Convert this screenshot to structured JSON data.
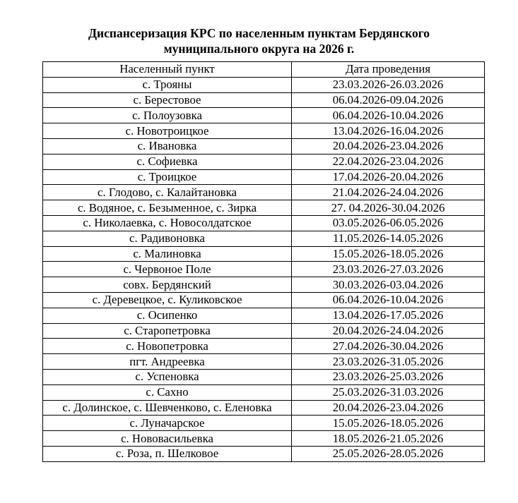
{
  "title": {
    "line1": "Диспансеризация КРС по населенным пунктам Бердянского",
    "line2": "муниципального округа на 2026 г."
  },
  "table": {
    "headers": [
      "Населенный пункт",
      "Дата проведения"
    ],
    "rows": [
      [
        "с. Трояны",
        "23.03.2026-26.03.2026"
      ],
      [
        "с. Берестовое",
        "06.04.2026-09.04.2026"
      ],
      [
        "с. Полоузовка",
        "06.04.2026-10.04.2026"
      ],
      [
        "с. Новотроицкое",
        "13.04.2026-16.04.2026"
      ],
      [
        "с. Ивановка",
        "20.04.2026-23.04.2026"
      ],
      [
        "с. Софиевка",
        "22.04.2026-23.04.2026"
      ],
      [
        "с. Троицкое",
        "17.04.2026-20.04.2026"
      ],
      [
        "с. Глодово, с. Калайтановка",
        "21.04.2026-24.04.2026"
      ],
      [
        "с. Водяное, с. Безыменное, с. Зирка",
        "27. 04.2026-30.04.2026"
      ],
      [
        "с. Николаевка, с. Новосолдатское",
        "03.05.2026-06.05.2026"
      ],
      [
        "с. Радивоновка",
        "11.05.2026-14.05.2026"
      ],
      [
        "с. Малиновка",
        "15.05.2026-18.05.2026"
      ],
      [
        "с. Червоное Поле",
        "23.03.2026-27.03.2026"
      ],
      [
        "совх. Бердянский",
        "30.03.2026-03.04.2026"
      ],
      [
        "с. Деревецкое, с. Куликовское",
        "06.04.2026-10.04.2026"
      ],
      [
        "с. Осипенко",
        "13.04.2026-17.05.2026"
      ],
      [
        "с. Старопетровка",
        "20.04.2026-24.04.2026"
      ],
      [
        "с. Новопетровка",
        "27.04.2026-30.04.2026"
      ],
      [
        "пгт. Андреевка",
        "23.03.2026-31.05.2026"
      ],
      [
        "с. Успеновка",
        "23.03.2026-25.03.2026"
      ],
      [
        "с. Сахно",
        "25.03.2026-31.03.2026"
      ],
      [
        "с. Долинское, с. Шевченково, с. Еленовка",
        "20.04.2026-23.04.2026"
      ],
      [
        "с. Луначарское",
        "15.05.2026-18.05.2026"
      ],
      [
        "с. Нововасильевка",
        "18.05.2026-21.05.2026"
      ],
      [
        "с. Роза, п. Шелковое",
        "25.05.2026-28.05.2026"
      ]
    ]
  }
}
